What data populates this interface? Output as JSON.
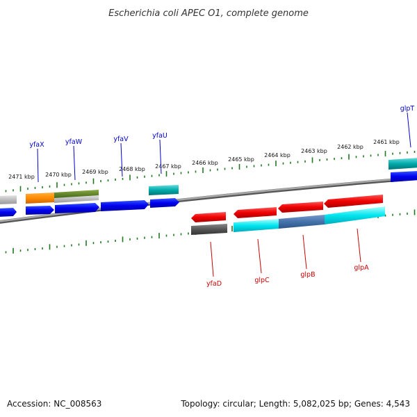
{
  "title": "Escherichia coli APEC O1, complete genome",
  "footer": {
    "accession": "Accession: NC_008563",
    "topology": "Topology: circular; Length: 5,082,025 bp; Genes: 4,543"
  },
  "colors": {
    "backbone": "#8a8a8a",
    "tick": "#1f7a1f",
    "forward_label": "#0000cc",
    "reverse_label": "#cc0000"
  },
  "kbp_ticks": [
    "2471 kbp",
    "2470 kbp",
    "2469 kbp",
    "2468 kbp",
    "2467 kbp",
    "2466 kbp",
    "2465 kbp",
    "2464 kbp",
    "2463 kbp",
    "2462 kbp",
    "2461 kbp"
  ],
  "gene_labels": {
    "forward": [
      "yfaX",
      "yfaW",
      "yfaV",
      "yfaU",
      "glpT"
    ],
    "reverse": [
      "yfaD",
      "glpC",
      "glpB",
      "glpA"
    ]
  }
}
